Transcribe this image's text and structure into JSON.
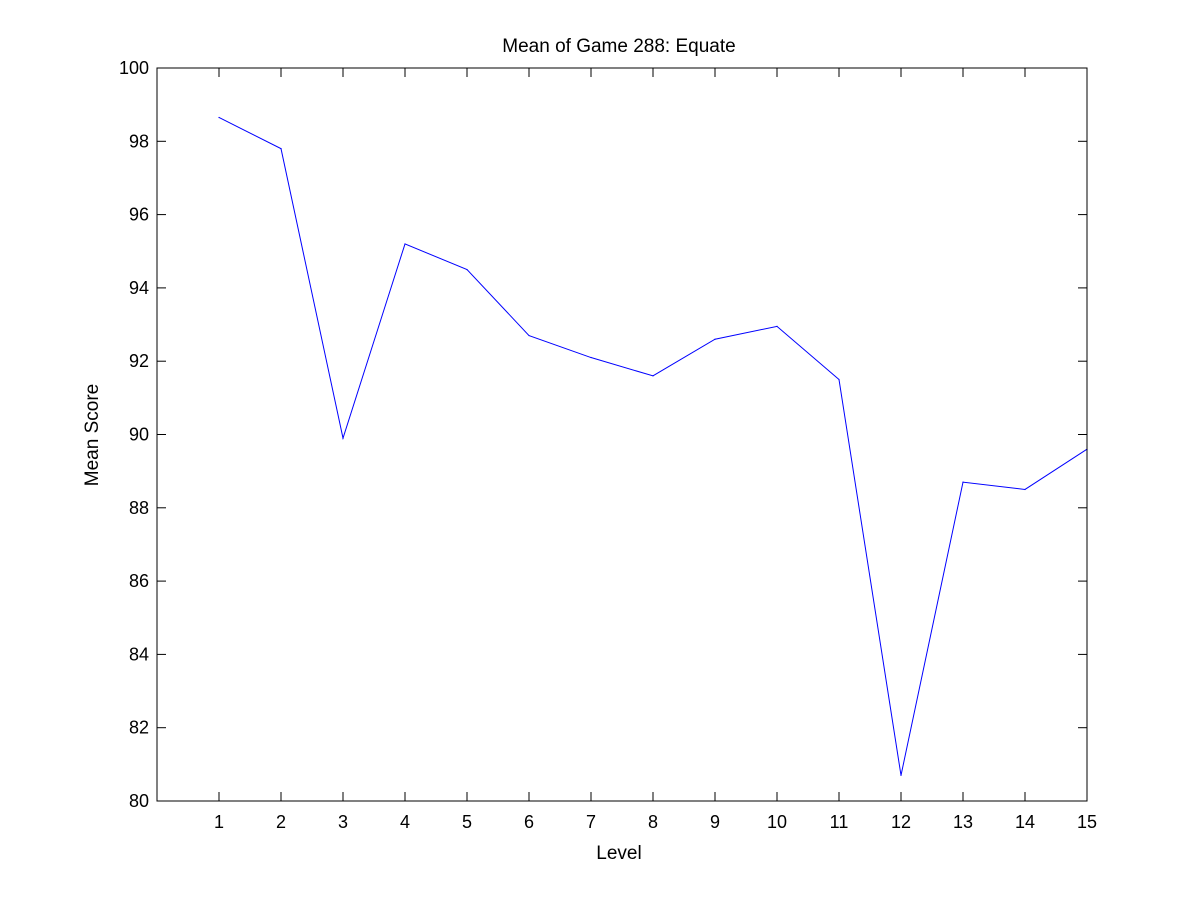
{
  "chart_data": {
    "type": "line",
    "title": "Mean of Game 288: Equate",
    "xlabel": "Level",
    "ylabel": "Mean Score",
    "x": [
      1,
      2,
      3,
      4,
      5,
      6,
      7,
      8,
      9,
      10,
      11,
      12,
      13,
      14,
      15
    ],
    "series": [
      {
        "values": [
          98.65,
          97.8,
          89.9,
          95.2,
          94.5,
          92.7,
          92.1,
          91.6,
          92.6,
          92.95,
          91.5,
          80.7,
          88.7,
          88.5,
          89.6
        ],
        "color": "#0000ff"
      }
    ],
    "xlim": [
      0,
      15
    ],
    "ylim": [
      80,
      100
    ],
    "xticks": [
      1,
      2,
      3,
      4,
      5,
      6,
      7,
      8,
      9,
      10,
      11,
      12,
      13,
      14,
      15
    ],
    "yticks": [
      80,
      82,
      84,
      86,
      88,
      90,
      92,
      94,
      96,
      98,
      100
    ],
    "grid": false,
    "legend": "none"
  }
}
